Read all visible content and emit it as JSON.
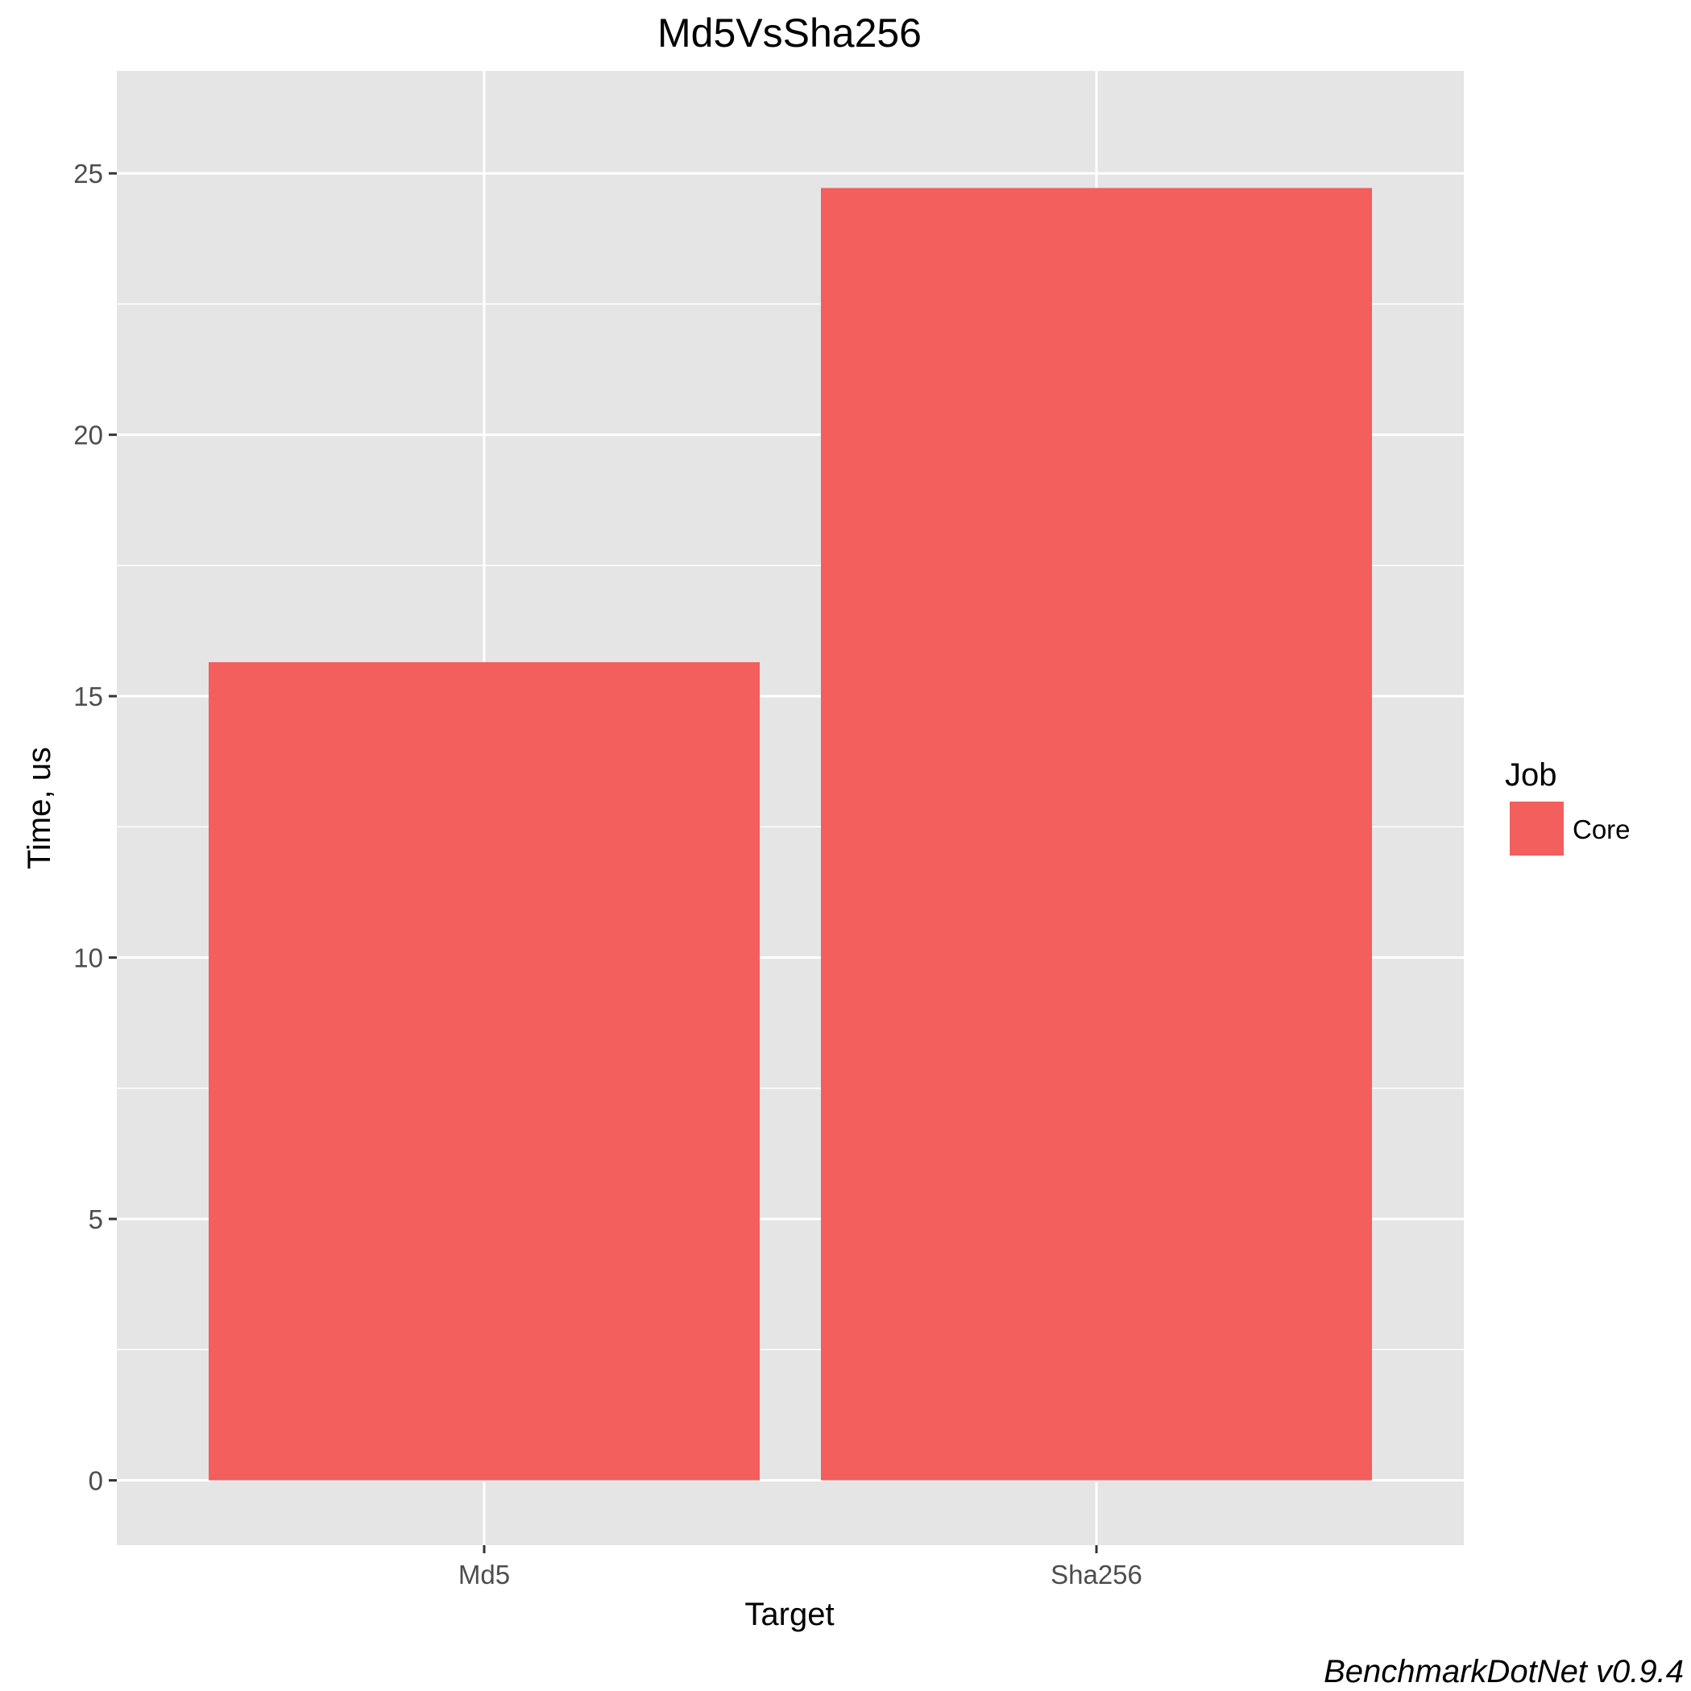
{
  "chart_data": {
    "type": "bar",
    "title": "Md5VsSha256",
    "xlabel": "Target",
    "ylabel": "Time, us",
    "categories": [
      "Md5",
      "Sha256"
    ],
    "series": [
      {
        "name": "Core",
        "values": [
          15.65,
          24.72
        ]
      }
    ],
    "ylim": [
      -1.24,
      26.96
    ],
    "yticks": [
      0,
      5,
      10,
      15,
      20,
      25
    ],
    "grid": true,
    "legend": {
      "title": "Job",
      "placement": "right"
    },
    "colors": {
      "bar": "#F25F5C",
      "panel": "#E5E5E5",
      "grid": "#FFFFFF"
    },
    "caption": "BenchmarkDotNet v0.9.4"
  }
}
